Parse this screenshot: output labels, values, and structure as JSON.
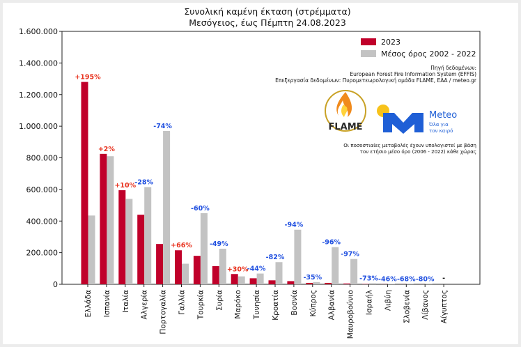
{
  "chart_data": {
    "type": "bar",
    "title": "Συνολική καμένη έκταση (στρέμματα)",
    "subtitle": "Μεσόγειος, έως Πέμπτη 24.08.2023",
    "ylim": [
      0,
      1600000
    ],
    "yticks": [
      "0",
      "200.000",
      "400.000",
      "600.000",
      "800.000",
      "1.000.000",
      "1.200.000",
      "1.400.000",
      "1.600.000"
    ],
    "categories": [
      "Ελλάδα",
      "Ισπανία",
      "Ιταλία",
      "Αλγερία",
      "Πορτογαλία",
      "Γαλλία",
      "Τουρκία",
      "Συρία",
      "Μαρόκο",
      "Τυνησία",
      "Κροατία",
      "Βοσνία",
      "Κύπρος",
      "Αλβανία",
      "Μαυροβούνιο",
      "Ισραήλ",
      "Λιβύη",
      "Σλοβενία",
      "Λίβανος",
      "Αίγυπτος"
    ],
    "series": [
      {
        "name": "2023",
        "color": "#c0002a",
        "values": [
          1280000,
          825000,
          595000,
          440000,
          255000,
          215000,
          180000,
          115000,
          65000,
          38000,
          25000,
          20000,
          9000,
          9000,
          5000,
          2000,
          1000,
          500,
          300,
          0
        ]
      },
      {
        "name": "Μέσος όρος 2002 - 2022",
        "color": "#c3c3c3",
        "values": [
          435000,
          810000,
          540000,
          615000,
          970000,
          130000,
          450000,
          225000,
          50000,
          68000,
          140000,
          345000,
          14000,
          235000,
          160000,
          7000,
          2000,
          1500,
          1500,
          0
        ]
      }
    ],
    "changes": [
      "+195%",
      "+2%",
      "+10%",
      "-28%",
      "-74%",
      "+66%",
      "-60%",
      "-49%",
      "+30%",
      "-44%",
      "-82%",
      "-94%",
      "-35%",
      "-96%",
      "-97%",
      "-73%",
      "-46%",
      "-68%",
      "-80%",
      "-"
    ],
    "positive_color": "#e8321e",
    "negative_color": "#1f4fe0",
    "legend_position": "top-right",
    "grid": false
  },
  "source": {
    "line1": "Πηγή δεδομένων:",
    "line2": "European Forest Fire Information System (EFFIS)",
    "line3": "Επεξεργασία δεδομένων: Πυρομετεωρολογική ομάδα FLAME, ΕΑΑ / meteo.gr"
  },
  "logos": {
    "flame": "FLAME",
    "meteo": "Meteo",
    "meteo_tagline1": "Όλα για",
    "meteo_tagline2": "τον καιρό",
    "meteo_mark": "M"
  },
  "note": {
    "line1": "Οι ποσοστιαίες μεταβολές έχουν υπολογιστεί με βάση",
    "line2": "τον ετήσιο μέσο όρο (2006 - 2022) κάθε χώρας"
  },
  "colors": {
    "bar_2023": "#c0002a",
    "bar_avg": "#c3c3c3",
    "meteo_blue": "#1f5fd6",
    "sun_yellow": "#f7c21b"
  }
}
